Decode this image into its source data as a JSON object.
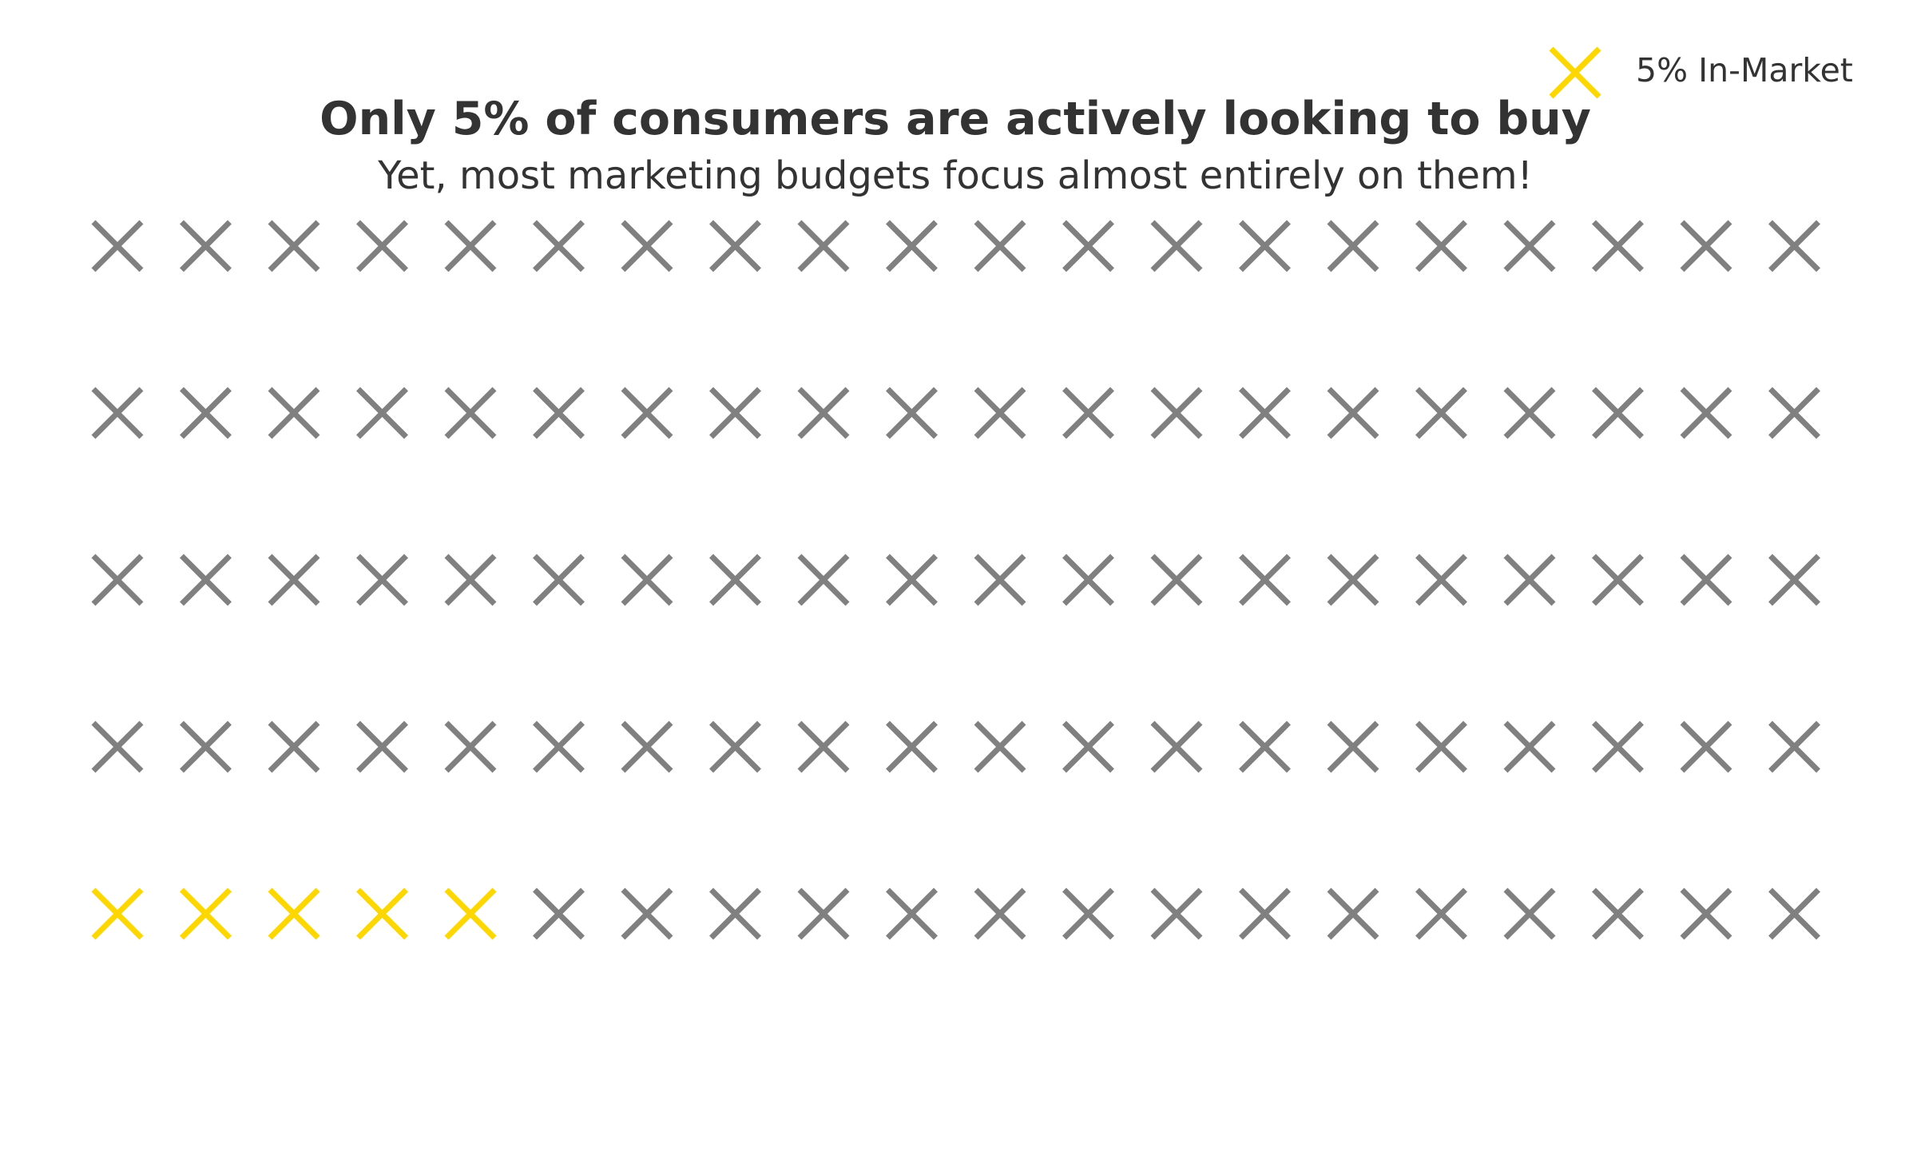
{
  "chart_data": {
    "type": "waffle",
    "title": "Only 5% of consumers are actively looking to buy",
    "subtitle": "Yet, most marketing budgets focus almost entirely on them!",
    "rows": 5,
    "columns": 20,
    "total": 100,
    "highlighted_count": 5,
    "highlight_position": "bottom-left",
    "marker": "x",
    "legend": {
      "label": "5% In-Market",
      "placement": "top-right"
    },
    "colors": {
      "highlight": "#FFD700",
      "base": "#808080",
      "text": "#333333"
    }
  }
}
